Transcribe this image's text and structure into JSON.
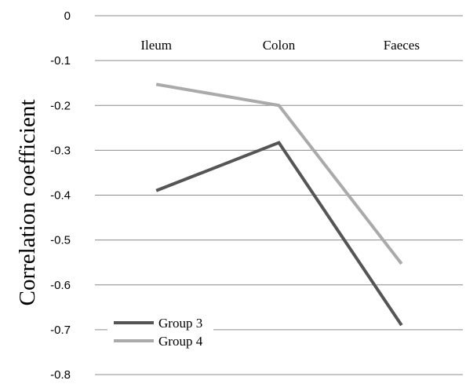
{
  "chart_data": {
    "type": "line",
    "categories": [
      "Ileum",
      "Colon",
      "Faeces"
    ],
    "series": [
      {
        "name": "Group 3",
        "values": [
          -0.39,
          -0.283,
          -0.69
        ],
        "color": "#555555"
      },
      {
        "name": "Group 4",
        "values": [
          -0.153,
          -0.2,
          -0.553
        ],
        "color": "#aaaaaa"
      }
    ],
    "title": "",
    "xlabel": "",
    "ylabel": "Correlation coefficient",
    "ylim": [
      -0.8,
      0
    ],
    "yticks": [
      "0",
      "-0.1",
      "-0.2",
      "-0.3",
      "-0.4",
      "-0.5",
      "-0.6",
      "-0.7",
      "-0.8"
    ],
    "grid": true,
    "category_labels_position": "top",
    "legend_position": "bottom-left"
  }
}
